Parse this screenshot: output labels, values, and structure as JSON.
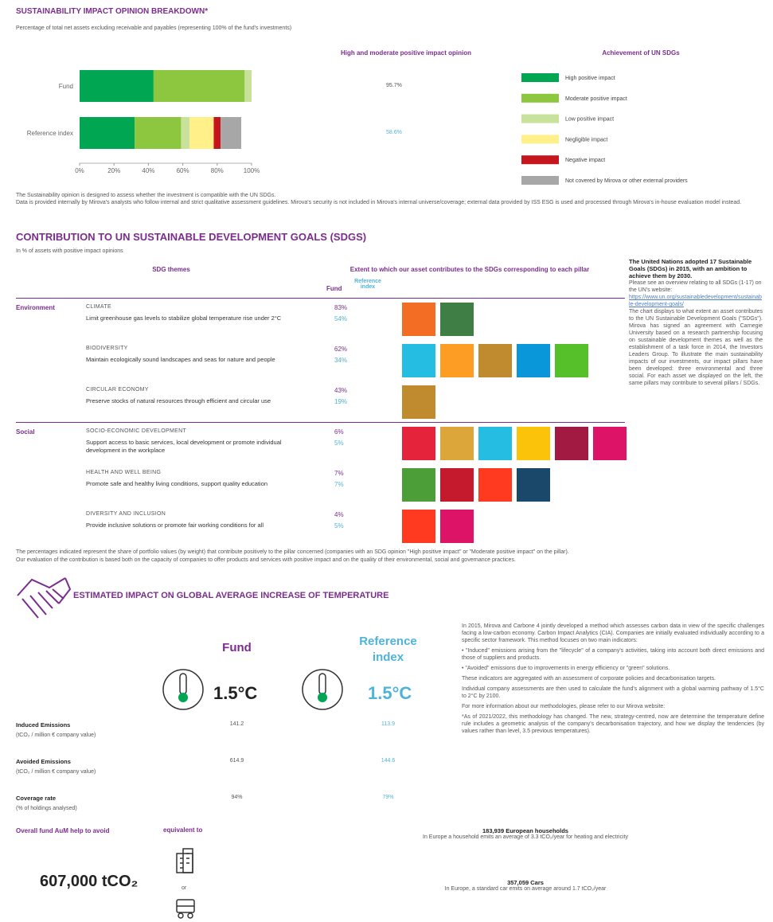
{
  "breakdown": {
    "title": "SUSTAINABILITY IMPACT OPINION BREAKDOWN*",
    "subtitle": "Percentage of total net assets excluding receivable and payables (representing 100% of the fund's investments)",
    "opinion_header": "High and moderate positive impact opinion",
    "legend_header": "Achievement of UN SDGs",
    "chart_data": {
      "type": "bar",
      "stacked": true,
      "orientation": "horizontal",
      "categories": [
        "Fund",
        "Reference index"
      ],
      "series": [
        {
          "name": "High positive impact",
          "color": "#00a651",
          "values": [
            43,
            32
          ]
        },
        {
          "name": "Moderate positive impact",
          "color": "#8dc63f",
          "values": [
            53,
            27
          ]
        },
        {
          "name": "Low positive impact",
          "color": "#c8e29b",
          "values": [
            4,
            5
          ]
        },
        {
          "name": "Negligible impact",
          "color": "#fff08a",
          "values": [
            0,
            14
          ]
        },
        {
          "name": "Negative impact",
          "color": "#c4161c",
          "values": [
            0,
            4
          ]
        },
        {
          "name": "Not covered by Mirova or other external providers",
          "color": "#a7a7a7",
          "values": [
            0,
            12
          ]
        }
      ],
      "xlim": [
        0,
        100
      ],
      "xticks": [
        {
          "value": 0,
          "label": "0%"
        },
        {
          "value": 20,
          "label": "20%"
        },
        {
          "value": 40,
          "label": "40%"
        },
        {
          "value": 60,
          "label": "60%"
        },
        {
          "value": 80,
          "label": "80%"
        },
        {
          "value": 100,
          "label": "100%"
        }
      ]
    },
    "opinion_values": [
      "95.7%",
      "58.6%"
    ],
    "notes": [
      "The Sustainability opinion is designed to assess whether the investment is compatible with the UN SDGs.",
      "Data is provided internally by Mirova's analysts who follow internal and strict qualitative assessment guidelines. Mirova's security is not included in Mirova's internal universe/coverage; external data provided by ISS ESG is used and processed through Mirova's in-house evaluation model instead."
    ]
  },
  "sdg": {
    "title": "CONTRIBUTION TO UN SUSTAINABLE DEVELOPMENT GOALS (SDGS)",
    "subtitle": "In % of assets with positive impact opinions",
    "themes_header": "SDG themes",
    "extent_header": "Extent to which our asset contributes to the SDGs corresponding to each pillar",
    "fund_header": "Fund",
    "index_header": "Reference index",
    "pillars": [
      {
        "name": "Environment",
        "themes": [
          {
            "name": "CLIMATE",
            "description": "Limit greenhouse gas levels to stabilize global temperature rise under 2°C",
            "fund": "83%",
            "index": "54%",
            "icons": [
              "#f36d25",
              "#3f7e44"
            ]
          },
          {
            "name": "BIODIVERSITY",
            "description": "Maintain ecologically sound landscapes and seas for nature and people",
            "fund": "62%",
            "index": "34%",
            "icons": [
              "#26bde2",
              "#fd9d24",
              "#bf8b2e",
              "#0a97d9",
              "#56c02b"
            ]
          },
          {
            "name": "CIRCULAR ECONOMY",
            "description": "Preserve stocks of natural resources through efficient and circular use",
            "fund": "43%",
            "index": "19%",
            "icons": [
              "#bf8b2e"
            ]
          }
        ]
      },
      {
        "name": "Social",
        "themes": [
          {
            "name": "SOCIO-ECONOMIC DEVELOPMENT",
            "description": "Support access to basic services, local development or promote individual development in the workplace",
            "fund": "6%",
            "index": "5%",
            "icons": [
              "#e5243b",
              "#dda63a",
              "#26bde2",
              "#fcc30b",
              "#a21942",
              "#dd1367"
            ]
          },
          {
            "name": "HEALTH AND WELL BEING",
            "description": "Promote safe and healthy living conditions, support quality education",
            "fund": "7%",
            "index": "7%",
            "icons": [
              "#4c9f38",
              "#c5192d",
              "#ff3a21",
              "#19486a"
            ]
          },
          {
            "name": "DIVERSITY AND INCLUSION",
            "description": "Provide inclusive solutions or promote fair working conditions for all",
            "fund": "4%",
            "index": "5%",
            "icons": [
              "#ff3a21",
              "#dd1367"
            ]
          }
        ]
      }
    ],
    "sidebar": {
      "lead": "The United Nations adopted 17 Sustainable Goals (SDGs) in 2015, with an ambition to achieve them by 2030.",
      "intro": "Please see an overview relating to all SDGs (1-17) on the UN's website:",
      "link": "https://www.un.org/sustainabledevelopment/sustainable-development-goals/",
      "body": "The chart displays to what extent an asset contributes to the UN Sustainable Development Goals (\"SDGs\"). Mirova has signed an agreement with Carnegie University based on a research partnership focusing on sustainable development themes as well as the establishment of a task force in 2014, the Investors Leaders Group. To illustrate the main sustainability impacts of our investments, our impact pillars have been developed: three environmental and three social. For each asset we displayed on the left, the same pillars may contribute to several pillars / SDGs."
    },
    "notes": [
      "The percentages indicated represent the share of portfolio values (by weight) that contribute positively to the pillar concerned (companies with an SDG opinion \"High positive impact\" or \"Moderate positive impact\" on the pillar).",
      "Our evaluation of the contribution is based both on the capacity of companies to offer products and services with positive impact and on the quality of their environmental, social and governance practices."
    ]
  },
  "temperature": {
    "title": "ESTIMATED IMPACT ON GLOBAL AVERAGE INCREASE OF TEMPERATURE",
    "fund_header": "Fund",
    "index_header": "Reference index",
    "fund_value": "1.5°C",
    "index_value": "1.5°C",
    "rows": [
      {
        "label": "Induced Emissions",
        "unit": "(tCO₂ / million € company value)",
        "fund": "141.2",
        "index": "113.9"
      },
      {
        "label": "Avoided Emissions",
        "unit": "(tCO₂ / million € company value)",
        "fund": "614.9",
        "index": "144.6"
      },
      {
        "label": "Coverage rate",
        "unit": "(% of holdings analysed)",
        "fund": "94%",
        "index": "79%"
      }
    ],
    "text": [
      "In 2015, Mirova and Carbone 4 jointly developed a method which assesses carbon data in view of the specific challenges facing a low-carbon economy. Carbon Impact Analytics (CIA). Companies are initially evaluated individually according to a specific sector framework. This method focuses on two main indicators:",
      "• \"Induced\" emissions arising from the \"lifecycle\" of a company's activities, taking into account both direct emissions and those of suppliers and products.",
      "• \"Avoided\" emissions due to improvements in energy efficiency or \"green\" solutions.",
      "These indicators are aggregated with an assessment of corporate policies and decarbonisation targets.",
      "Individual company assessments are then used to calculate the fund's alignment with a global warming pathway of 1.5°C to 2°C by 2100.",
      "For more information about our methodologies, please refer to our Mirova website:",
      "*As of 2021/2022, this methodology has changed. The new, strategy-centred, now are determine the temperature define rule includes a geometric analysis of the company's decarbonisation trajectory, and how we display the tendencies (by values rather than level, 3.5 previous temperatures)."
    ],
    "avoided_label": "Overall fund AuM help to avoid",
    "avoided_value": "607,000 tCO₂",
    "equivalent_label": "equivalent to",
    "or_label": "or",
    "equivalents": [
      {
        "title": "183,939 European households",
        "text": "In Europe a household emits an average of 3.3 tCO₂/year for heating and electricity"
      },
      {
        "title": "357,059 Cars",
        "text": "In Europe, a standard car emits on average around 1.7 tCO₂/year"
      }
    ]
  }
}
